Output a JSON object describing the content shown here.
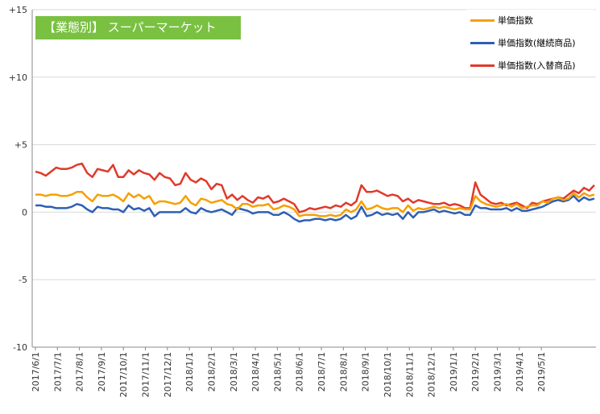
{
  "chart_data": {
    "type": "line",
    "title": "【業態別】 スーパーマーケット",
    "xlabel": "",
    "ylabel": "",
    "ylim": [
      -10,
      15
    ],
    "y_ticks": [
      {
        "value": 15,
        "label": "+15"
      },
      {
        "value": 10,
        "label": "+10"
      },
      {
        "value": 5,
        "label": "+5"
      },
      {
        "value": 0,
        "label": "0"
      },
      {
        "value": -5,
        "label": "-5"
      },
      {
        "value": -10,
        "label": "-10"
      }
    ],
    "x_tick_labels": [
      "2017/6/1",
      "2017/7/1",
      "2017/8/1",
      "2017/9/1",
      "2017/10/1",
      "2017/11/1",
      "2017/12/1",
      "2018/1/1",
      "2018/2/1",
      "2018/3/1",
      "2018/4/1",
      "2018/5/1",
      "2018/6/1",
      "2018/7/1",
      "2018/8/1",
      "2018/9/1",
      "2018/10/1",
      "2018/11/1",
      "2018/12/1",
      "2019/1/1",
      "2019/2/1",
      "2019/3/1",
      "2019/4/1",
      "2019/5/1"
    ],
    "x_start": "2017/6/1",
    "x_interval": "weekly",
    "grid": "horizontal",
    "legend_position": "top-right",
    "series": [
      {
        "name": "単価指数",
        "color": "#f5a000",
        "values": [
          1.3,
          1.3,
          1.2,
          1.3,
          1.3,
          1.2,
          1.2,
          1.3,
          1.5,
          1.5,
          1.1,
          0.8,
          1.3,
          1.2,
          1.2,
          1.3,
          1.1,
          0.8,
          1.4,
          1.1,
          1.3,
          1.0,
          1.2,
          0.6,
          0.8,
          0.8,
          0.7,
          0.6,
          0.7,
          1.2,
          0.7,
          0.5,
          1.0,
          0.9,
          0.7,
          0.8,
          0.9,
          0.6,
          0.5,
          0.2,
          0.6,
          0.6,
          0.4,
          0.5,
          0.5,
          0.6,
          0.2,
          0.3,
          0.5,
          0.4,
          0.2,
          -0.3,
          -0.2,
          -0.2,
          -0.2,
          -0.3,
          -0.3,
          -0.2,
          -0.3,
          -0.2,
          0.2,
          0.0,
          0.2,
          0.8,
          0.2,
          0.3,
          0.5,
          0.3,
          0.2,
          0.3,
          0.3,
          0.0,
          0.5,
          0.1,
          0.3,
          0.2,
          0.3,
          0.4,
          0.3,
          0.4,
          0.3,
          0.2,
          0.3,
          0.2,
          0.2,
          1.2,
          0.8,
          0.6,
          0.5,
          0.4,
          0.5,
          0.6,
          0.4,
          0.6,
          0.3,
          0.4,
          0.5,
          0.5,
          0.8,
          0.7,
          1.0,
          1.1,
          0.9,
          1.0,
          1.4,
          1.1,
          1.4,
          1.2,
          1.3
        ]
      },
      {
        "name": "単価指数(継続商品)",
        "color": "#2e5fb5",
        "values": [
          0.5,
          0.5,
          0.4,
          0.4,
          0.3,
          0.3,
          0.3,
          0.4,
          0.6,
          0.5,
          0.2,
          0.0,
          0.4,
          0.3,
          0.3,
          0.2,
          0.2,
          0.0,
          0.5,
          0.2,
          0.3,
          0.1,
          0.3,
          -0.3,
          0.0,
          0.0,
          0.0,
          0.0,
          0.0,
          0.3,
          0.0,
          -0.1,
          0.3,
          0.1,
          0.0,
          0.1,
          0.2,
          0.0,
          -0.2,
          0.3,
          0.2,
          0.1,
          -0.1,
          0.0,
          0.0,
          0.0,
          -0.2,
          -0.2,
          0.0,
          -0.2,
          -0.5,
          -0.7,
          -0.6,
          -0.6,
          -0.5,
          -0.5,
          -0.6,
          -0.5,
          -0.6,
          -0.5,
          -0.2,
          -0.5,
          -0.3,
          0.4,
          -0.3,
          -0.2,
          0.0,
          -0.2,
          -0.1,
          -0.2,
          -0.1,
          -0.5,
          0.0,
          -0.4,
          0.0,
          0.0,
          0.1,
          0.2,
          0.0,
          0.1,
          0.0,
          -0.1,
          0.0,
          -0.2,
          -0.2,
          0.5,
          0.3,
          0.3,
          0.2,
          0.2,
          0.2,
          0.3,
          0.1,
          0.3,
          0.1,
          0.1,
          0.2,
          0.3,
          0.4,
          0.6,
          0.8,
          0.9,
          0.8,
          0.9,
          1.2,
          0.8,
          1.1,
          0.9,
          1.0
        ]
      },
      {
        "name": "単価指数(入替商品)",
        "color": "#e03a2b",
        "values": [
          3.0,
          2.9,
          2.7,
          3.0,
          3.3,
          3.2,
          3.2,
          3.3,
          3.5,
          3.6,
          2.9,
          2.6,
          3.2,
          3.1,
          3.0,
          3.5,
          2.6,
          2.6,
          3.1,
          2.8,
          3.1,
          2.9,
          2.8,
          2.4,
          2.9,
          2.6,
          2.5,
          2.0,
          2.1,
          2.9,
          2.4,
          2.2,
          2.5,
          2.3,
          1.7,
          2.1,
          2.0,
          1.0,
          1.3,
          0.9,
          1.2,
          0.9,
          0.7,
          1.1,
          1.0,
          1.2,
          0.7,
          0.8,
          1.0,
          0.8,
          0.6,
          0.0,
          0.1,
          0.3,
          0.2,
          0.3,
          0.4,
          0.3,
          0.5,
          0.4,
          0.7,
          0.5,
          0.8,
          2.0,
          1.5,
          1.5,
          1.6,
          1.4,
          1.2,
          1.3,
          1.2,
          0.8,
          1.0,
          0.7,
          0.9,
          0.8,
          0.7,
          0.6,
          0.6,
          0.7,
          0.5,
          0.6,
          0.5,
          0.3,
          0.3,
          2.2,
          1.3,
          1.0,
          0.7,
          0.6,
          0.7,
          0.5,
          0.6,
          0.7,
          0.5,
          0.3,
          0.7,
          0.6,
          0.8,
          0.9,
          1.0,
          1.1,
          1.0,
          1.3,
          1.6,
          1.4,
          1.8,
          1.6,
          2.0
        ]
      }
    ]
  }
}
